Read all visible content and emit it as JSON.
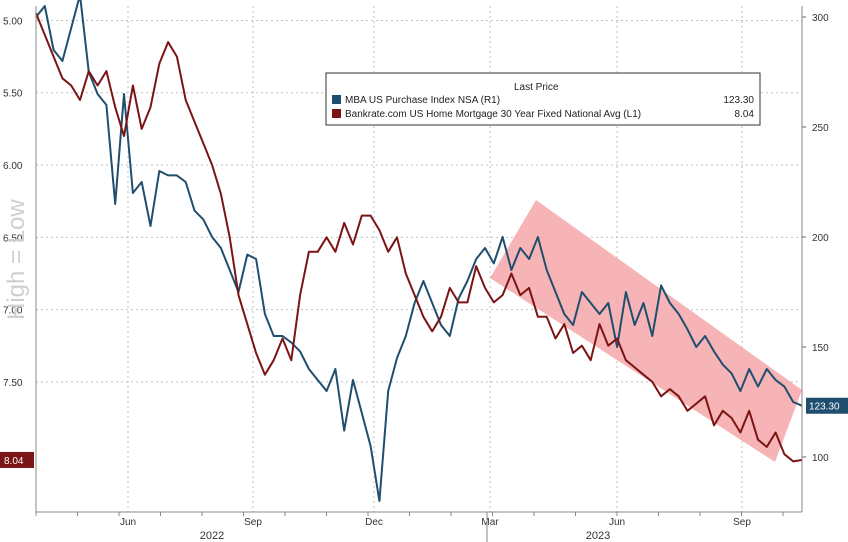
{
  "chart_data": {
    "type": "line",
    "annotation": "High = Low",
    "x_axis": {
      "month_ticks": [
        "Jun",
        "Sep",
        "Dec",
        "Mar",
        "Jun",
        "Sep"
      ],
      "year_labels": [
        "2022",
        "2023"
      ]
    },
    "y_left": {
      "ticks": [
        "5.00",
        "5.50",
        "6.00",
        "6.50",
        "7.00",
        "7.50"
      ],
      "tick_values": [
        5.0,
        5.5,
        6.0,
        6.5,
        7.0,
        7.5
      ],
      "range": [
        4.9,
        8.4
      ],
      "inverted": true
    },
    "y_right": {
      "ticks": [
        "300",
        "250",
        "200",
        "150",
        "100"
      ],
      "tick_values": [
        300,
        250,
        200,
        150,
        100
      ],
      "range": [
        75,
        305
      ]
    },
    "grid": true,
    "legend": {
      "title": "Last Price",
      "placement": "top-right",
      "entries": [
        {
          "label": "MBA US Purchase Index NSA  (R1)",
          "value": "123.30",
          "color": "#1f4e6e"
        },
        {
          "label": "Bankrate.com US Home Mortgage 30 Year Fixed National Avg  (L1)",
          "value": "8.04",
          "color": "#7b1414"
        }
      ]
    },
    "last_value_badges": {
      "left": "8.04",
      "right": "123.30"
    },
    "trend_channel": {
      "color": "#f4a7a9"
    },
    "series": [
      {
        "name": "MBA US Purchase Index NSA (R1)",
        "axis": "right",
        "color": "#1f4e6e",
        "x": [
          0,
          1,
          2,
          3,
          4,
          5,
          6,
          7,
          8,
          9,
          10,
          11,
          12,
          13,
          14,
          15,
          16,
          17,
          18,
          19,
          20,
          21,
          22,
          23,
          24,
          25,
          26,
          27,
          28,
          29,
          30,
          31,
          32,
          33,
          34,
          35,
          36,
          37,
          38,
          39,
          40,
          41,
          42,
          43,
          44,
          45,
          46,
          47,
          48,
          49,
          50,
          51,
          52,
          53,
          54,
          55,
          56,
          57,
          58,
          59,
          60,
          61,
          62,
          63,
          64,
          65,
          66,
          67,
          68,
          69,
          70,
          71,
          72,
          73,
          74,
          75,
          76,
          77,
          78,
          79,
          80,
          81,
          82,
          83,
          84,
          85,
          86,
          87
        ],
        "values": [
          300,
          305,
          285,
          280,
          295,
          310,
          275,
          265,
          260,
          215,
          265,
          220,
          225,
          205,
          230,
          228,
          228,
          225,
          212,
          208,
          200,
          195,
          185,
          175,
          192,
          190,
          165,
          155,
          155,
          152,
          148,
          140,
          135,
          130,
          140,
          112,
          135,
          120,
          105,
          80,
          130,
          145,
          155,
          170,
          180,
          170,
          160,
          155,
          172,
          180,
          190,
          195,
          188,
          200,
          185,
          195,
          190,
          200,
          185,
          175,
          165,
          160,
          175,
          170,
          165,
          170,
          150,
          175,
          160,
          170,
          155,
          178,
          170,
          165,
          158,
          150,
          155,
          148,
          142,
          138,
          130,
          140,
          132,
          140,
          135,
          132,
          125,
          123.3
        ]
      },
      {
        "name": "Bankrate.com US Home Mortgage 30 Year Fixed National Avg (L1)",
        "axis": "left",
        "color": "#7b1414",
        "x": [
          0,
          1,
          2,
          3,
          4,
          5,
          6,
          7,
          8,
          9,
          10,
          11,
          12,
          13,
          14,
          15,
          16,
          17,
          18,
          19,
          20,
          21,
          22,
          23,
          24,
          25,
          26,
          27,
          28,
          29,
          30,
          31,
          32,
          33,
          34,
          35,
          36,
          37,
          38,
          39,
          40,
          41,
          42,
          43,
          44,
          45,
          46,
          47,
          48,
          49,
          50,
          51,
          52,
          53,
          54,
          55,
          56,
          57,
          58,
          59,
          60,
          61,
          62,
          63,
          64,
          65,
          66,
          67,
          68,
          69,
          70,
          71,
          72,
          73,
          74,
          75,
          76,
          77,
          78,
          79,
          80,
          81,
          82,
          83,
          84,
          85,
          86,
          87
        ],
        "values": [
          4.95,
          5.1,
          5.25,
          5.4,
          5.45,
          5.55,
          5.35,
          5.45,
          5.35,
          5.6,
          5.8,
          5.45,
          5.75,
          5.6,
          5.3,
          5.15,
          5.25,
          5.55,
          5.7,
          5.85,
          6.0,
          6.2,
          6.5,
          6.9,
          7.1,
          7.3,
          7.45,
          7.35,
          7.2,
          7.35,
          6.9,
          6.6,
          6.6,
          6.5,
          6.6,
          6.4,
          6.55,
          6.35,
          6.35,
          6.45,
          6.6,
          6.5,
          6.75,
          6.9,
          7.05,
          7.15,
          7.05,
          6.85,
          6.95,
          6.95,
          6.7,
          6.85,
          6.95,
          6.9,
          6.75,
          6.9,
          6.85,
          7.05,
          7.05,
          7.2,
          7.1,
          7.3,
          7.25,
          7.35,
          7.1,
          7.25,
          7.2,
          7.35,
          7.4,
          7.45,
          7.5,
          7.6,
          7.55,
          7.6,
          7.7,
          7.65,
          7.6,
          7.8,
          7.7,
          7.75,
          7.85,
          7.7,
          7.9,
          7.95,
          7.85,
          8.0,
          8.05,
          8.04
        ]
      }
    ]
  }
}
